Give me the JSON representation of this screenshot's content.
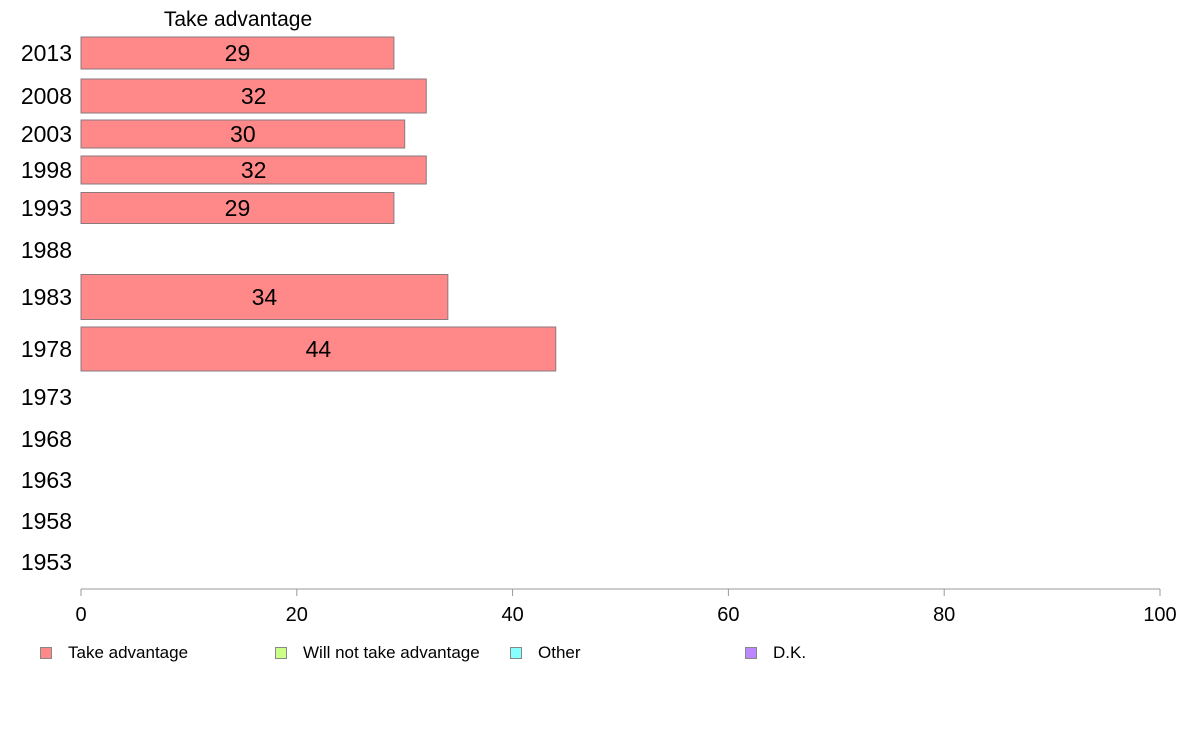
{
  "chart_data": {
    "type": "bar",
    "orientation": "horizontal",
    "title": "Take advantage",
    "categories": [
      "2013",
      "2008",
      "2003",
      "1998",
      "1993",
      "1988",
      "1983",
      "1978",
      "1973",
      "1968",
      "1963",
      "1958",
      "1953"
    ],
    "series": [
      {
        "name": "Take advantage",
        "color": "#ff8888",
        "values": [
          29,
          32,
          30,
          32,
          29,
          null,
          34,
          44,
          null,
          null,
          null,
          null,
          null
        ],
        "labels": [
          "29",
          "32",
          "30",
          "32",
          "29",
          "",
          "34",
          "44",
          "",
          "",
          "",
          "",
          ""
        ]
      }
    ],
    "xlim": [
      0,
      100
    ],
    "xticks": [
      "0",
      "20",
      "40",
      "60",
      "80",
      "100"
    ],
    "grid": false,
    "legend_position": "bottom"
  },
  "legend": [
    {
      "label": "Take advantage",
      "color": "#ff8888"
    },
    {
      "label": "Will not take advantage",
      "color": "#ccff88"
    },
    {
      "label": "Other",
      "color": "#88ffff"
    },
    {
      "label": "D.K.",
      "color": "#bb88ff"
    }
  ]
}
